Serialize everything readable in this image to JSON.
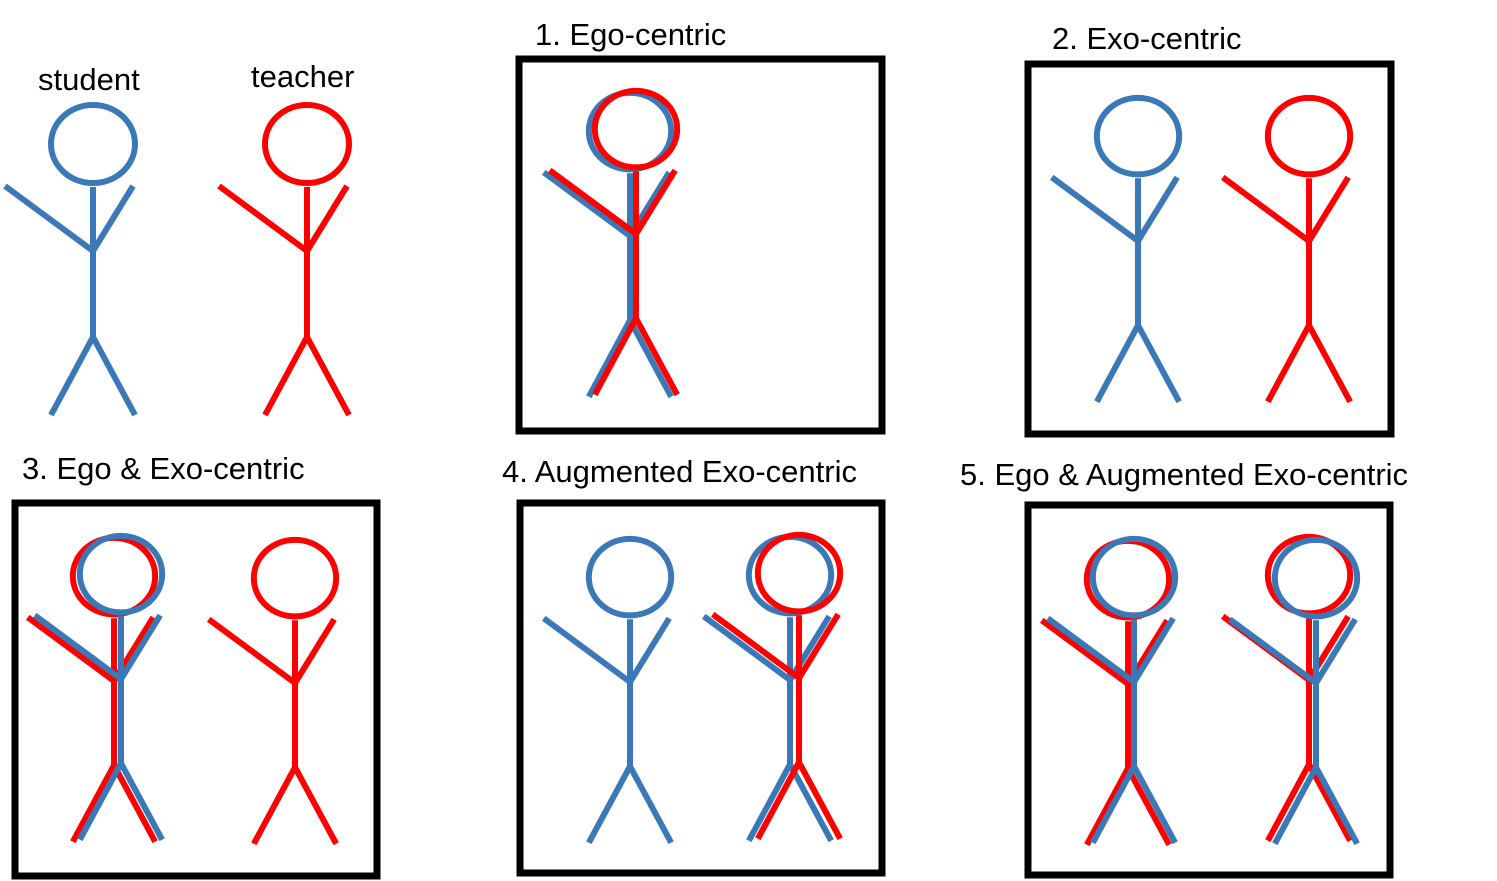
{
  "labels": {
    "student": "student",
    "teacher": "teacher"
  },
  "panels": [
    {
      "id": "p1",
      "title": "1. Ego-centric"
    },
    {
      "id": "p2",
      "title": "2. Exo-centric"
    },
    {
      "id": "p3",
      "title": "3. Ego & Exo-centric"
    },
    {
      "id": "p4",
      "title": "4. Augmented Exo-centric"
    },
    {
      "id": "p5",
      "title": "5. Ego & Augmented Exo-centric"
    }
  ],
  "colors": {
    "student": "#3a78b8",
    "teacher": "#ff0000",
    "frame": "#000000",
    "background": "#ffffff"
  }
}
